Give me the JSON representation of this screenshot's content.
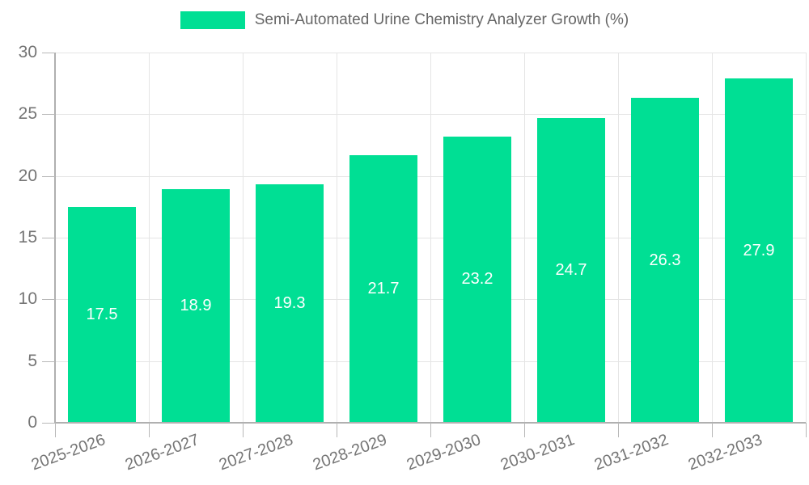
{
  "legend": {
    "label": "Semi-Automated Urine Chemistry Analyzer Growth (%)"
  },
  "chart_data": {
    "type": "bar",
    "title": "Semi-Automated Urine Chemistry Analyzer Growth (%)",
    "categories": [
      "2025-2026",
      "2026-2027",
      "2027-2028",
      "2028-2029",
      "2029-2030",
      "2030-2031",
      "2031-2032",
      "2032-2033"
    ],
    "series": [
      {
        "name": "Semi-Automated Urine Chemistry Analyzer Growth (%)",
        "values": [
          17.5,
          18.9,
          19.3,
          21.7,
          23.2,
          24.7,
          26.3,
          27.9
        ]
      }
    ],
    "value_labels": [
      "17.5",
      "18.9",
      "19.3",
      "21.7",
      "23.2",
      "24.7",
      "26.3",
      "27.9"
    ],
    "xlabel": "",
    "ylabel": "",
    "ylim": [
      0,
      30
    ],
    "yticks": [
      0,
      5,
      10,
      15,
      20,
      25,
      30
    ],
    "grid": true,
    "legend_position": "top",
    "colors": {
      "bar": "#00DF94",
      "value_label": "#ffffff",
      "grid": "#e5e5e5",
      "axis": "#b0b0b0",
      "tick_text": "#757575",
      "legend_text": "#666666"
    }
  }
}
